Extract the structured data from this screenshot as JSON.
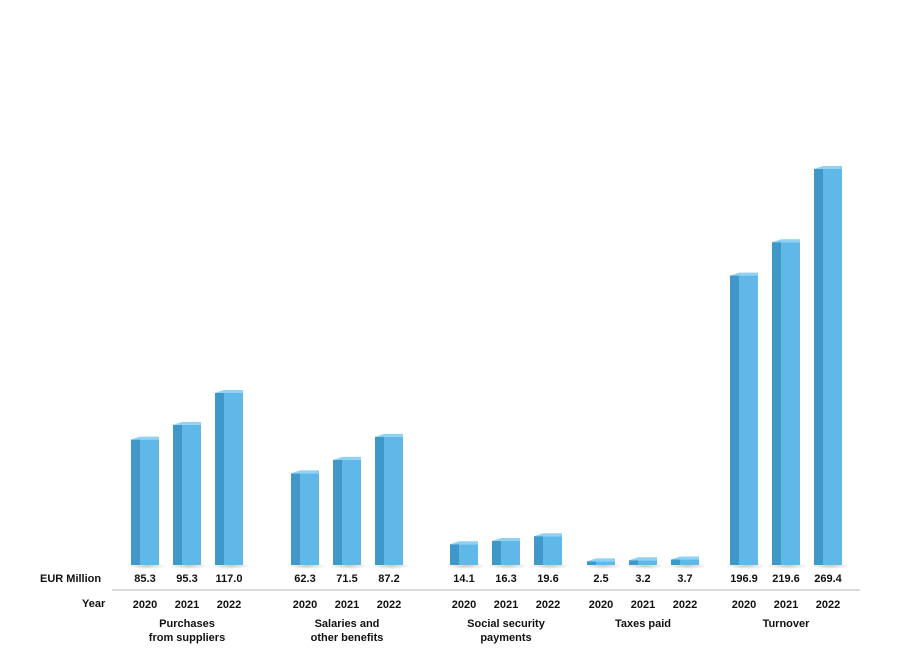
{
  "chart_data": {
    "type": "bar",
    "row_labels": {
      "values": "EUR Million",
      "years": "Year"
    },
    "years": [
      "2020",
      "2021",
      "2022"
    ],
    "categories": [
      {
        "label_lines": [
          "Purchases",
          "from suppliers"
        ],
        "values": [
          85.3,
          95.3,
          117.0
        ],
        "value_labels": [
          "85.3",
          "95.3",
          "117.0"
        ]
      },
      {
        "label_lines": [
          "Salaries and",
          "other benefits"
        ],
        "values": [
          62.3,
          71.5,
          87.2
        ],
        "value_labels": [
          "62.3",
          "71.5",
          "87.2"
        ]
      },
      {
        "label_lines": [
          "Social security",
          "payments"
        ],
        "values": [
          14.1,
          16.3,
          19.6
        ],
        "value_labels": [
          "14.1",
          "16.3",
          "19.6"
        ]
      },
      {
        "label_lines": [
          "Taxes paid"
        ],
        "values": [
          2.5,
          3.2,
          3.7
        ],
        "value_labels": [
          "2.5",
          "3.2",
          "3.7"
        ]
      },
      {
        "label_lines": [
          "Turnover"
        ],
        "values": [
          196.9,
          219.6,
          269.4
        ],
        "value_labels": [
          "196.9",
          "219.6",
          "269.4"
        ]
      }
    ],
    "bar_color": "#5fb8e8",
    "bar_side_color": "#3f98c8",
    "bar_top_color": "#8fd2f4",
    "grid": false,
    "legend": "none"
  }
}
